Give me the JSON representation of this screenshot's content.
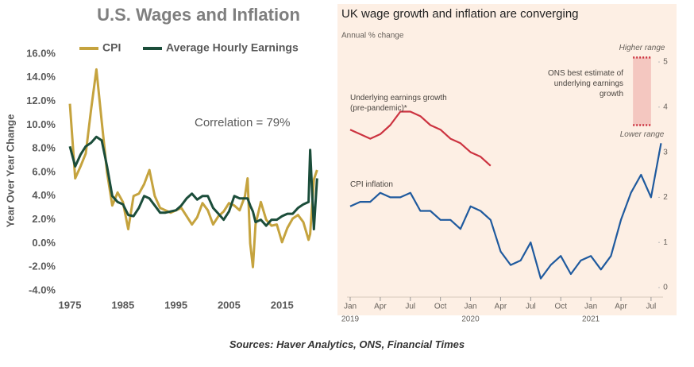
{
  "chart_data": [
    {
      "type": "line",
      "title": "U.S. Wages and Inflation",
      "y_label": "Year Over Year Change",
      "annotation": "Correlation = 79%",
      "x": [
        1975,
        1976,
        1977,
        1978,
        1979,
        1980,
        1981,
        1982,
        1983,
        1984,
        1985,
        1986,
        1987,
        1988,
        1989,
        1990,
        1991,
        1992,
        1993,
        1994,
        1995,
        1996,
        1997,
        1998,
        1999,
        2000,
        2001,
        2002,
        2003,
        2004,
        2005,
        2006,
        2007,
        2008,
        2008.5,
        2009,
        2009.5,
        2010,
        2011,
        2012,
        2013,
        2014,
        2015,
        2016,
        2017,
        2018,
        2019,
        2020,
        2020.3,
        2021,
        2021.6
      ],
      "series": [
        {
          "name": "CPI",
          "color": "#c5a33e",
          "values": [
            11.8,
            5.5,
            6.5,
            7.6,
            11.3,
            14.7,
            10.3,
            6.0,
            3.2,
            4.3,
            3.5,
            1.2,
            4.0,
            4.2,
            5.0,
            6.2,
            4.0,
            3.0,
            2.8,
            2.6,
            2.8,
            3.0,
            2.3,
            1.6,
            2.2,
            3.4,
            2.8,
            1.6,
            2.3,
            2.7,
            3.4,
            3.2,
            2.8,
            4.0,
            5.5,
            0.0,
            -2.0,
            1.6,
            3.5,
            2.0,
            1.5,
            1.6,
            0.1,
            1.3,
            2.1,
            2.4,
            1.8,
            0.3,
            0.8,
            5.4,
            6.2
          ]
        },
        {
          "name": "Average Hourly Earnings",
          "color": "#1b4d3a",
          "values": [
            8.2,
            6.5,
            7.5,
            8.2,
            8.5,
            9.0,
            8.7,
            6.5,
            4.0,
            3.5,
            3.3,
            2.4,
            2.3,
            3.0,
            4.0,
            3.8,
            3.2,
            2.6,
            2.6,
            2.7,
            2.8,
            3.2,
            3.8,
            4.2,
            3.7,
            4.0,
            4.0,
            3.0,
            2.5,
            2.0,
            2.7,
            4.0,
            3.8,
            3.8,
            3.8,
            3.2,
            2.7,
            1.8,
            2.0,
            1.5,
            2.0,
            2.0,
            2.3,
            2.5,
            2.5,
            3.0,
            3.3,
            3.5,
            7.9,
            1.2,
            5.5
          ]
        }
      ],
      "xlim": [
        1975,
        2022
      ],
      "xticks": [
        1975,
        1985,
        1995,
        2005,
        2015
      ],
      "ylim": [
        -4,
        16
      ],
      "yticks": [
        {
          "value": -4,
          "label": "-4.0%"
        },
        {
          "value": -2,
          "label": "-2.0%"
        },
        {
          "value": 0,
          "label": "0.0%"
        },
        {
          "value": 2,
          "label": "2.0%"
        },
        {
          "value": 4,
          "label": "4.0%"
        },
        {
          "value": 6,
          "label": "6.0%"
        },
        {
          "value": 8,
          "label": "8.0%"
        },
        {
          "value": 10,
          "label": "10.0%"
        },
        {
          "value": 12,
          "label": "12.0%"
        },
        {
          "value": 14,
          "label": "14.0%"
        },
        {
          "value": 16,
          "label": "16.0%"
        }
      ],
      "grid": false
    },
    {
      "type": "line",
      "title": "UK wage growth and inflation are converging",
      "subtitle": "Annual % change",
      "categories": [
        "Jan",
        null,
        null,
        "Apr",
        null,
        null,
        "Jul",
        null,
        null,
        "Oct",
        null,
        null,
        "Jan",
        null,
        null,
        "Apr",
        null,
        null,
        "Jul",
        null,
        null,
        "Oct",
        null,
        null,
        "Jan",
        null,
        null,
        "Apr",
        null,
        null,
        "Jul",
        null
      ],
      "years": [
        "2019",
        "2020",
        "2021"
      ],
      "series": [
        {
          "name": "Underlying earnings growth (pre-pandemic)*",
          "color": "#cc3340",
          "values": [
            3.5,
            3.4,
            3.3,
            3.4,
            3.6,
            3.9,
            3.9,
            3.8,
            3.6,
            3.5,
            3.3,
            3.2,
            3.0,
            2.9,
            2.7,
            null,
            null,
            null,
            null,
            null,
            null,
            null,
            null,
            null,
            null,
            null,
            null,
            null,
            null,
            null,
            null,
            null
          ]
        },
        {
          "name": "CPI inflation",
          "color": "#1f5a9e",
          "values": [
            1.8,
            1.9,
            1.9,
            2.1,
            2.0,
            2.0,
            2.1,
            1.7,
            1.7,
            1.5,
            1.5,
            1.3,
            1.8,
            1.7,
            1.5,
            0.8,
            0.5,
            0.6,
            1.0,
            0.2,
            0.5,
            0.7,
            0.3,
            0.6,
            0.7,
            0.4,
            0.7,
            1.5,
            2.1,
            2.5,
            2.0,
            3.2
          ]
        }
      ],
      "band": {
        "low": 3.6,
        "high": 5.1,
        "low_label": "Lower range",
        "high_label": "Higher range",
        "label": "ONS best estimate of underlying earnings growth",
        "color": "#f4c7c0"
      },
      "ylim": [
        0,
        5.3
      ],
      "yticks": [
        0,
        1,
        2,
        3,
        4,
        5
      ],
      "grid": false
    }
  ],
  "caption": "Sources: Haver Analytics, ONS, Financial Times"
}
